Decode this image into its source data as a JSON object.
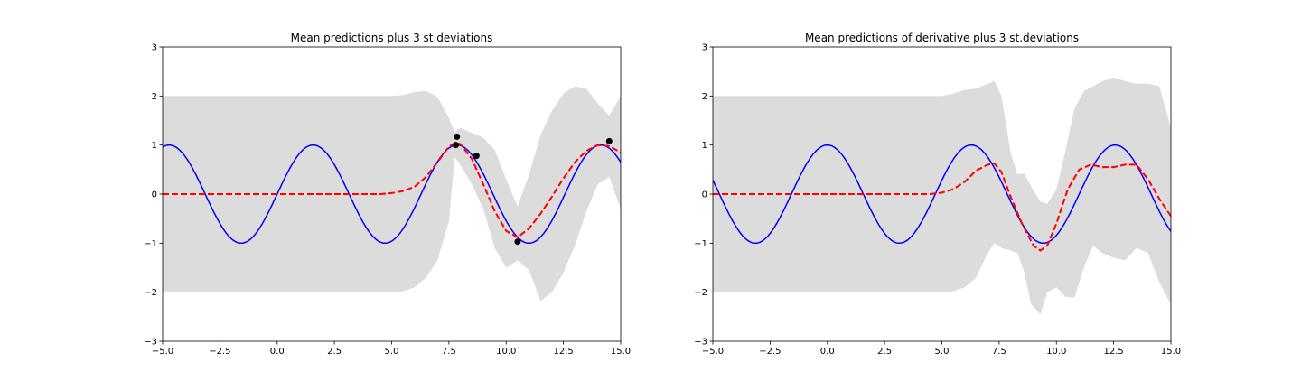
{
  "chart_data": [
    {
      "type": "line",
      "title": "Mean predictions plus 3 st.deviations",
      "xlabel": "",
      "ylabel": "",
      "xlim": [
        -5,
        15
      ],
      "ylim": [
        -3,
        3
      ],
      "grid": false,
      "x_ticks": [
        -5,
        -2.5,
        0,
        2.5,
        5,
        7.5,
        10,
        12.5,
        15
      ],
      "x_tick_labels": [
        "−5.0",
        "−2.5",
        "0.0",
        "2.5",
        "5.0",
        "7.5",
        "10.0",
        "12.5",
        "15.0"
      ],
      "y_ticks": [
        -3,
        -2,
        -1,
        0,
        1,
        2,
        3
      ],
      "y_tick_labels": [
        "−3",
        "−2",
        "−1",
        "0",
        "1",
        "2",
        "3"
      ],
      "band": {
        "x": [
          -5,
          5,
          5.5,
          6,
          6.5,
          7,
          7.5,
          7.75,
          8,
          8.5,
          9,
          9.5,
          10,
          10.5,
          11,
          11.5,
          12,
          12.5,
          13,
          13.5,
          14,
          14.5,
          15
        ],
        "upper": [
          2,
          2,
          2.02,
          2.08,
          2.1,
          1.98,
          1.55,
          1.25,
          1.35,
          1.25,
          1.15,
          0.9,
          0.3,
          -0.25,
          0.4,
          1.2,
          1.7,
          2.05,
          2.2,
          2.15,
          1.85,
          1.6,
          2.0
        ],
        "lower": [
          -2,
          -2,
          -1.98,
          -1.9,
          -1.7,
          -1.35,
          -0.55,
          0.75,
          0.6,
          0.2,
          -0.3,
          -1.1,
          -1.5,
          -1.35,
          -1.55,
          -2.18,
          -2.0,
          -1.6,
          -1.05,
          -0.35,
          0.2,
          0.35,
          -0.3
        ],
        "color": "#dcdcdc"
      },
      "series": [
        {
          "function": "sin",
          "x_range": [
            -5,
            15
          ],
          "color": "#0000ff",
          "style": "solid"
        },
        {
          "style": "dashed",
          "color": "#ff0000",
          "x": [
            -5,
            4.5,
            5,
            5.5,
            6,
            6.5,
            7,
            7.5,
            7.8,
            8,
            8.5,
            9,
            9.5,
            10,
            10.5,
            11,
            11.5,
            12,
            12.5,
            13,
            13.5,
            14,
            14.5,
            15
          ],
          "y": [
            0,
            0,
            0.02,
            0.06,
            0.15,
            0.35,
            0.65,
            0.97,
            1.05,
            1.02,
            0.72,
            0.2,
            -0.35,
            -0.75,
            -0.88,
            -0.7,
            -0.4,
            -0.05,
            0.32,
            0.65,
            0.88,
            1.0,
            0.98,
            0.85
          ]
        }
      ],
      "points": {
        "x": [
          7.8,
          7.85,
          8.7,
          10.5,
          14.5
        ],
        "y": [
          1.0,
          1.17,
          0.78,
          -0.97,
          1.08
        ],
        "color": "#000000"
      }
    },
    {
      "type": "line",
      "title": "Mean predictions of derivative plus 3 st.deviations",
      "xlabel": "",
      "ylabel": "",
      "xlim": [
        -5,
        15
      ],
      "ylim": [
        -3,
        3
      ],
      "grid": false,
      "x_ticks": [
        -5,
        -2.5,
        0,
        2.5,
        5,
        7.5,
        10,
        12.5,
        15
      ],
      "x_tick_labels": [
        "−5.0",
        "−2.5",
        "0.0",
        "2.5",
        "5.0",
        "7.5",
        "10.0",
        "12.5",
        "15.0"
      ],
      "y_ticks": [
        -3,
        -2,
        -1,
        0,
        1,
        2,
        3
      ],
      "y_tick_labels": [
        "−3",
        "−2",
        "−1",
        "0",
        "1",
        "2",
        "3"
      ],
      "band": {
        "x": [
          -5,
          5,
          5.5,
          6,
          6.5,
          7,
          7.3,
          7.6,
          8,
          8.3,
          8.6,
          8.9,
          9.3,
          9.6,
          10,
          10.4,
          10.8,
          11.2,
          11.6,
          12,
          12.5,
          13,
          13.5,
          14,
          14.5,
          15
        ],
        "upper": [
          2,
          2,
          2.05,
          2.12,
          2.15,
          2.25,
          2.3,
          2.0,
          0.85,
          0.4,
          0.42,
          0.15,
          -0.15,
          -0.2,
          0.1,
          0.9,
          1.75,
          2.1,
          2.2,
          2.3,
          2.38,
          2.3,
          2.25,
          2.25,
          2.2,
          1.35
        ],
        "lower": [
          -2,
          -2,
          -1.98,
          -1.9,
          -1.7,
          -1.2,
          -1.0,
          -1.1,
          -1.15,
          -1.2,
          -1.6,
          -2.25,
          -2.45,
          -2.0,
          -1.9,
          -2.1,
          -2.1,
          -1.5,
          -1.05,
          -1.2,
          -1.3,
          -1.35,
          -1.1,
          -1.2,
          -1.8,
          -2.25
        ],
        "color": "#dcdcdc"
      },
      "series": [
        {
          "function": "cos",
          "x_range": [
            -5,
            15
          ],
          "color": "#0000ff",
          "style": "solid"
        },
        {
          "style": "dashed",
          "color": "#ff0000",
          "x": [
            -5,
            4.5,
            5,
            5.5,
            6,
            6.5,
            7,
            7.3,
            7.6,
            8,
            8.5,
            9,
            9.3,
            9.6,
            10,
            10.5,
            11,
            11.5,
            12,
            12.5,
            13,
            13.5,
            14,
            14.5,
            15
          ],
          "y": [
            0,
            0,
            0.03,
            0.1,
            0.25,
            0.48,
            0.6,
            0.62,
            0.45,
            -0.05,
            -0.6,
            -1.05,
            -1.15,
            -1.05,
            -0.6,
            0.1,
            0.5,
            0.6,
            0.55,
            0.55,
            0.6,
            0.6,
            0.3,
            -0.1,
            -0.45
          ]
        }
      ],
      "points": {
        "x": [],
        "y": [],
        "color": "#000000"
      }
    }
  ]
}
